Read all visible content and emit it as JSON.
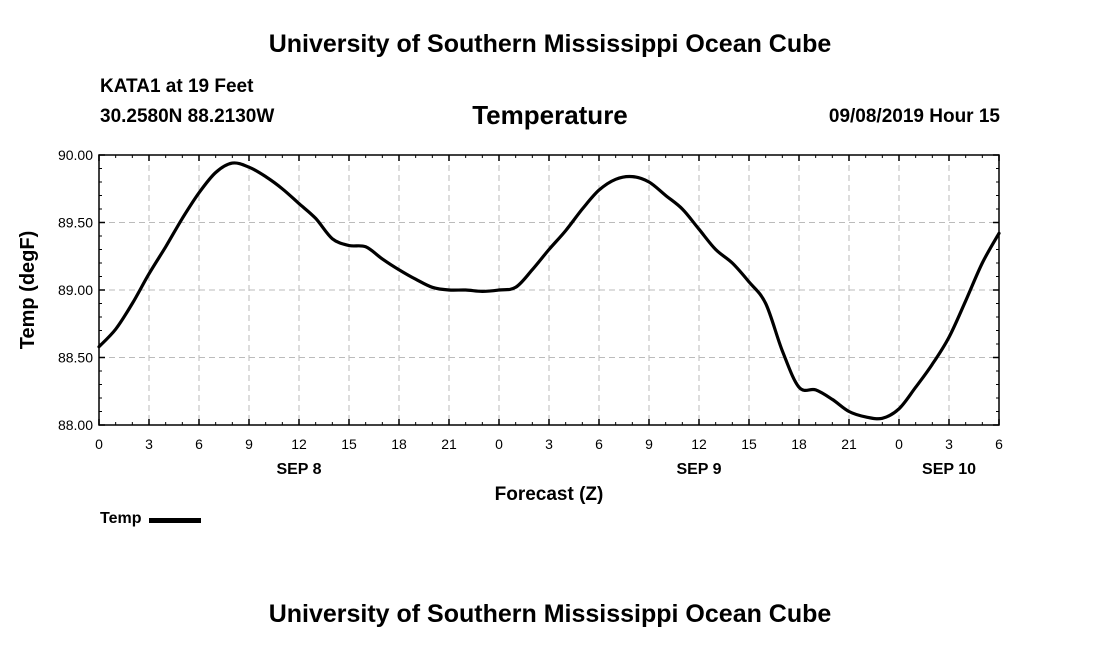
{
  "header": {
    "title": "University of Southern Mississippi Ocean Cube",
    "station": "KATA1 at 19 Feet",
    "coords": "30.2580N 88.2130W",
    "variable": "Temperature",
    "valid_time": "09/08/2019 Hour 15"
  },
  "footer": {
    "title": "University of Southern Mississippi Ocean Cube"
  },
  "legend": {
    "label": "Temp"
  },
  "chart_data": {
    "type": "line",
    "ylabel": "Temp (degF)",
    "xlabel": "Forecast (Z)",
    "ylim": [
      88.0,
      90.0
    ],
    "xlim": [
      0,
      54
    ],
    "y_ticks": [
      "88.00",
      "88.50",
      "89.00",
      "89.50",
      "90.00"
    ],
    "x_tick_labels": [
      "0",
      "3",
      "6",
      "9",
      "12",
      "15",
      "18",
      "21",
      "0",
      "3",
      "6",
      "9",
      "12",
      "15",
      "18",
      "21",
      "0",
      "3",
      "6"
    ],
    "date_labels": [
      {
        "hour": 12,
        "label": "SEP 8"
      },
      {
        "hour": 36,
        "label": "SEP 9"
      },
      {
        "hour": 51,
        "label": "SEP 10"
      }
    ],
    "grid": true,
    "colors": {
      "line": "#000000",
      "grid": "#bbbbbb"
    },
    "series": [
      {
        "name": "Temp",
        "x": [
          0,
          1,
          2,
          3,
          4,
          5,
          6,
          7,
          8,
          9,
          10,
          11,
          12,
          13,
          14,
          15,
          16,
          17,
          18,
          19,
          20,
          21,
          22,
          23,
          24,
          25,
          26,
          27,
          28,
          29,
          30,
          31,
          32,
          33,
          34,
          35,
          36,
          37,
          38,
          39,
          40,
          41,
          42,
          43,
          44,
          45,
          46,
          47,
          48,
          49,
          50,
          51,
          52,
          53,
          54
        ],
        "y": [
          88.58,
          88.71,
          88.9,
          89.12,
          89.32,
          89.53,
          89.72,
          89.87,
          89.94,
          89.91,
          89.84,
          89.75,
          89.64,
          89.53,
          89.38,
          89.33,
          89.32,
          89.23,
          89.15,
          89.08,
          89.02,
          89.0,
          89.0,
          88.99,
          89.0,
          89.02,
          89.15,
          89.3,
          89.44,
          89.6,
          89.74,
          89.82,
          89.84,
          89.8,
          89.7,
          89.6,
          89.45,
          89.3,
          89.2,
          89.06,
          88.9,
          88.55,
          88.28,
          88.26,
          88.19,
          88.1,
          88.06,
          88.05,
          88.12,
          88.28,
          88.45,
          88.65,
          88.92,
          89.2,
          89.42
        ]
      }
    ]
  }
}
